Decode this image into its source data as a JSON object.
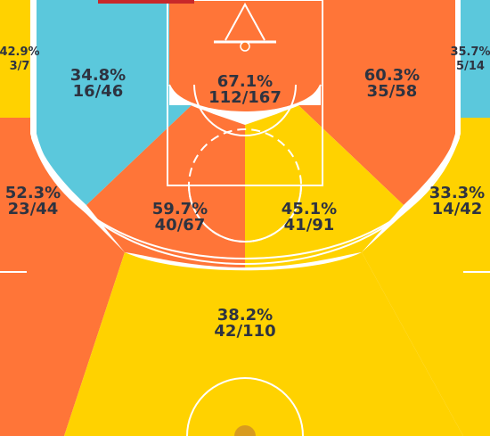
{
  "colors": {
    "orange": "#ff7538",
    "yellow": "#ffd200",
    "blue": "#5bc8dc",
    "lines": "#ffffff",
    "text": "#2e3340",
    "rim": "#ff7a2a",
    "header_tab": "#c8282a"
  },
  "zones": {
    "left_corner": {
      "pct": "42.9%",
      "frac": "3/7",
      "color": "yellow"
    },
    "right_corner": {
      "pct": "35.7%",
      "frac": "5/14",
      "color": "blue"
    },
    "left_baseline_mid": {
      "pct": "34.8%",
      "frac": "16/46",
      "color": "blue"
    },
    "restricted_area": {
      "pct": "67.1%",
      "frac": "112/167",
      "color": "orange"
    },
    "right_baseline_mid": {
      "pct": "60.3%",
      "frac": "35/58",
      "color": "orange"
    },
    "left_wing_three": {
      "pct": "52.3%",
      "frac": "23/44",
      "color": "orange"
    },
    "left_elbow_mid": {
      "pct": "59.7%",
      "frac": "40/67",
      "color": "orange"
    },
    "right_elbow_mid": {
      "pct": "45.1%",
      "frac": "41/91",
      "color": "yellow"
    },
    "right_wing_three": {
      "pct": "33.3%",
      "frac": "14/42",
      "color": "yellow"
    },
    "top_key_three": {
      "pct": "38.2%",
      "frac": "42/110",
      "color": "yellow"
    }
  }
}
